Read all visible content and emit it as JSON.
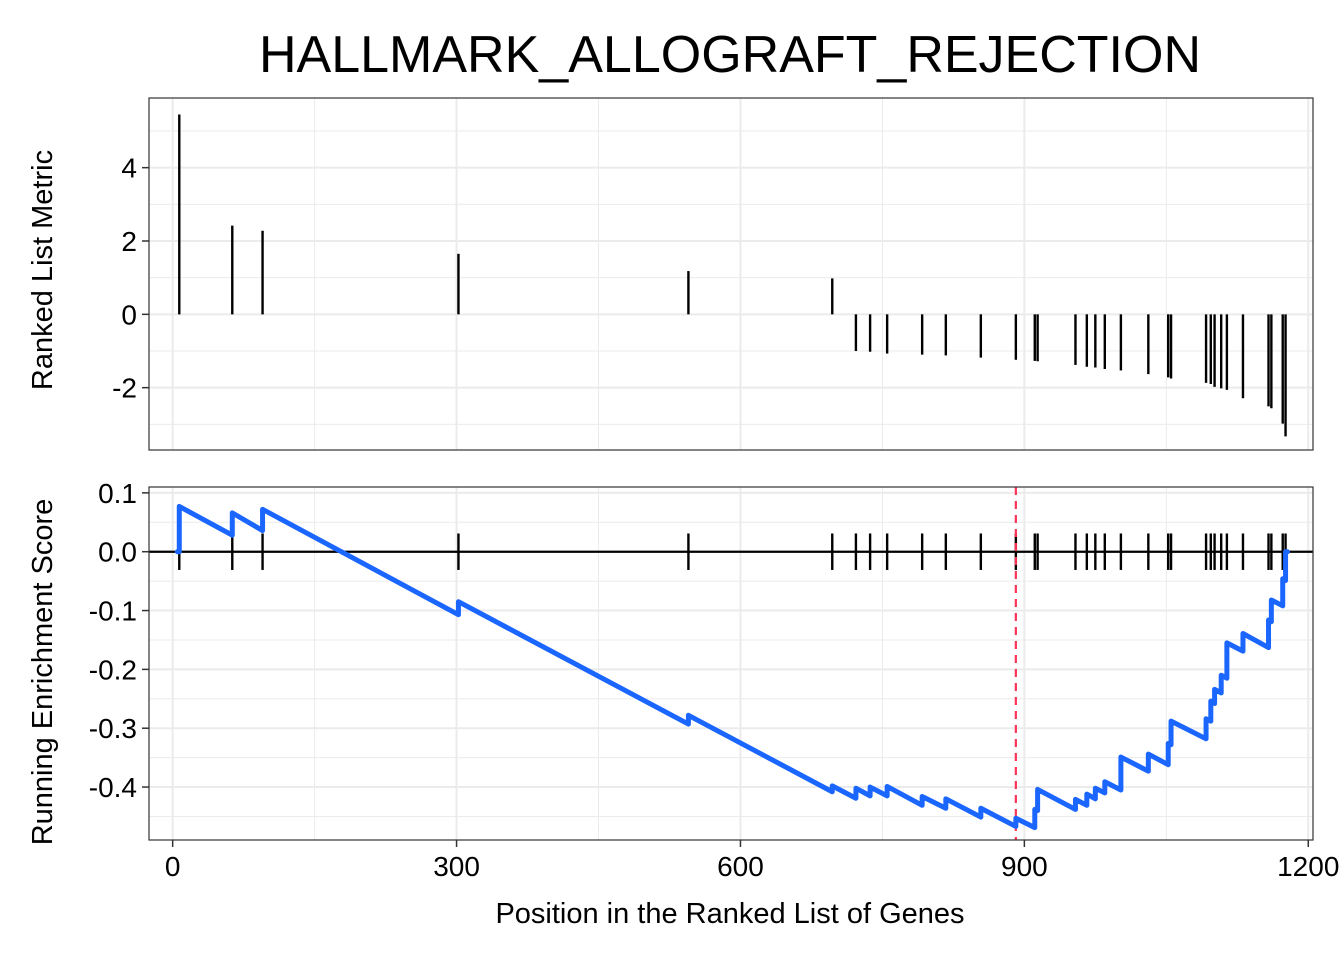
{
  "chart_data": {
    "type": "line",
    "title": "HALLMARK_ALLOGRAFT_REJECTION",
    "xlabel": "Position in the Ranked List of Genes",
    "xlim": [
      -25,
      1205
    ],
    "xticks": [
      0,
      300,
      600,
      900,
      1200
    ],
    "colors": {
      "running_score": "#1a66ff",
      "peak_line": "#ff3355",
      "hits": "#000000",
      "grid": "#ebebeb",
      "border": "#333333"
    },
    "top_panel": {
      "type": "bar",
      "ylabel": "Ranked List Metric",
      "ylim": [
        -3.7,
        5.9
      ],
      "yticks": [
        4,
        2,
        0,
        -2
      ],
      "ytick_labels": [
        "4",
        "2",
        "0",
        "-2"
      ],
      "x": [
        7,
        63,
        95,
        302,
        545,
        697,
        722,
        737,
        755,
        792,
        817,
        854,
        891,
        911,
        914,
        954,
        966,
        975,
        985,
        1002,
        1031,
        1052,
        1055,
        1092,
        1097,
        1101,
        1108,
        1114,
        1131,
        1158,
        1161,
        1173,
        1176
      ],
      "values": [
        5.45,
        2.42,
        2.28,
        1.65,
        1.18,
        0.98,
        -1.0,
        -1.02,
        -1.07,
        -1.1,
        -1.12,
        -1.18,
        -1.24,
        -1.27,
        -1.28,
        -1.38,
        -1.43,
        -1.45,
        -1.49,
        -1.53,
        -1.63,
        -1.72,
        -1.75,
        -1.87,
        -1.9,
        -1.98,
        -2.02,
        -2.06,
        -2.29,
        -2.51,
        -2.56,
        -2.98,
        -3.33
      ]
    },
    "bottom_panel": {
      "ylabel": "Running Enrichment Score",
      "ylim": [
        -0.49,
        0.11
      ],
      "yticks": [
        0.1,
        0.0,
        -0.1,
        -0.2,
        -0.3,
        -0.4
      ],
      "ytick_labels": [
        "0.1",
        "0.0",
        "-0.1",
        "-0.2",
        "-0.3",
        "-0.4"
      ],
      "hit_positions": [
        7,
        63,
        95,
        302,
        545,
        697,
        722,
        737,
        755,
        792,
        817,
        854,
        891,
        911,
        914,
        954,
        966,
        975,
        985,
        1002,
        1031,
        1052,
        1055,
        1092,
        1097,
        1101,
        1108,
        1114,
        1131,
        1158,
        1161,
        1173,
        1176
      ],
      "peak_position": 891,
      "series": [
        {
          "x": [
            5,
            7,
            7,
            63,
            63,
            95,
            95,
            302,
            302,
            545,
            545,
            697,
            697,
            722,
            722,
            737,
            737,
            755,
            755,
            792,
            792,
            817,
            817,
            854,
            854,
            891,
            891,
            911,
            911,
            914,
            914,
            954,
            954,
            966,
            966,
            975,
            975,
            985,
            985,
            1002,
            1002,
            1031,
            1031,
            1052,
            1052,
            1055,
            1055,
            1092,
            1092,
            1097,
            1097,
            1101,
            1101,
            1108,
            1108,
            1114,
            1114,
            1131,
            1131,
            1158,
            1158,
            1161,
            1161,
            1173,
            1173,
            1176,
            1176,
            1178
          ],
          "values": [
            0.0,
            0.0,
            0.077,
            0.028,
            0.066,
            0.036,
            0.072,
            -0.107,
            -0.085,
            -0.293,
            -0.278,
            -0.408,
            -0.398,
            -0.419,
            -0.402,
            -0.415,
            -0.4,
            -0.415,
            -0.399,
            -0.431,
            -0.416,
            -0.436,
            -0.42,
            -0.451,
            -0.436,
            -0.467,
            -0.453,
            -0.469,
            -0.438,
            -0.44,
            -0.404,
            -0.438,
            -0.421,
            -0.431,
            -0.412,
            -0.42,
            -0.402,
            -0.41,
            -0.391,
            -0.405,
            -0.349,
            -0.373,
            -0.344,
            -0.362,
            -0.326,
            -0.328,
            -0.288,
            -0.318,
            -0.284,
            -0.288,
            -0.254,
            -0.258,
            -0.234,
            -0.24,
            -0.21,
            -0.215,
            -0.155,
            -0.169,
            -0.139,
            -0.163,
            -0.116,
            -0.119,
            -0.082,
            -0.092,
            -0.046,
            -0.049,
            0.0,
            0.0
          ]
        }
      ]
    }
  }
}
